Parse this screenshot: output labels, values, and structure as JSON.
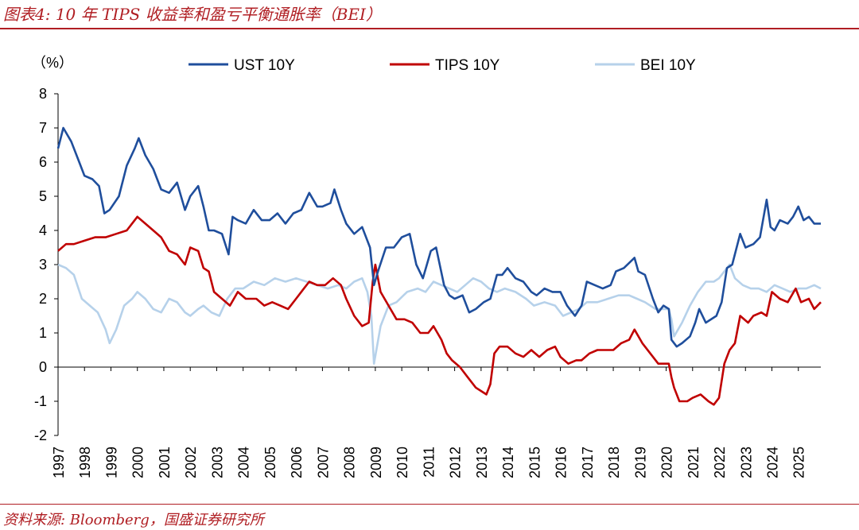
{
  "header": {
    "title": "图表4:  10 年 TIPS 收益率和盈亏平衡通胀率（BEI）"
  },
  "footer": {
    "source": "资料来源:  Bloomberg，国盛证券研究所"
  },
  "chart_data": {
    "type": "line",
    "y_unit_label": "（%）",
    "ylim": [
      -2,
      8
    ],
    "yticks": [
      -2,
      -1,
      0,
      1,
      2,
      3,
      4,
      5,
      6,
      7,
      8
    ],
    "xlim": [
      1997,
      2025.85
    ],
    "xticks": [
      "1997",
      "1998",
      "1999",
      "2000",
      "2001",
      "2002",
      "2003",
      "2004",
      "2005",
      "2006",
      "2007",
      "2008",
      "2009",
      "2010",
      "2011",
      "2012",
      "2013",
      "2014",
      "2015",
      "2016",
      "2017",
      "2018",
      "2019",
      "2020",
      "2021",
      "2022",
      "2023",
      "2024",
      "2025"
    ],
    "legend_position": "top",
    "series": [
      {
        "name": "UST 10Y",
        "color": "#1f4e9c",
        "x": [
          1997,
          1997.2,
          1997.5,
          1997.8,
          1998.0,
          1998.3,
          1998.55,
          1998.75,
          1998.95,
          1999.3,
          1999.6,
          1999.9,
          2000.05,
          2000.3,
          2000.6,
          2000.9,
          2001.2,
          2001.5,
          2001.8,
          2002.0,
          2002.3,
          2002.5,
          2002.7,
          2002.9,
          2003.2,
          2003.45,
          2003.6,
          2003.8,
          2004.1,
          2004.4,
          2004.7,
          2005.0,
          2005.3,
          2005.6,
          2005.9,
          2006.2,
          2006.5,
          2006.8,
          2007.0,
          2007.3,
          2007.45,
          2007.7,
          2007.9,
          2008.2,
          2008.5,
          2008.8,
          2008.95,
          2009.1,
          2009.4,
          2009.7,
          2010.0,
          2010.3,
          2010.55,
          2010.8,
          2011.1,
          2011.3,
          2011.6,
          2011.8,
          2012.0,
          2012.3,
          2012.55,
          2012.8,
          2013.1,
          2013.35,
          2013.6,
          2013.8,
          2014.0,
          2014.3,
          2014.6,
          2014.9,
          2015.1,
          2015.4,
          2015.7,
          2016.0,
          2016.25,
          2016.55,
          2016.8,
          2017.0,
          2017.3,
          2017.6,
          2017.9,
          2018.1,
          2018.4,
          2018.8,
          2018.95,
          2019.2,
          2019.5,
          2019.7,
          2019.9,
          2020.1,
          2020.2,
          2020.4,
          2020.6,
          2020.9,
          2021.1,
          2021.25,
          2021.5,
          2021.9,
          2022.1,
          2022.3,
          2022.5,
          2022.8,
          2023.0,
          2023.3,
          2023.55,
          2023.8,
          2023.95,
          2024.1,
          2024.3,
          2024.6,
          2024.8,
          2025.0,
          2025.2,
          2025.4,
          2025.6,
          2025.85
        ],
        "values": [
          6.4,
          7.0,
          6.6,
          6.0,
          5.6,
          5.5,
          5.3,
          4.5,
          4.6,
          5.0,
          5.9,
          6.4,
          6.7,
          6.2,
          5.8,
          5.2,
          5.1,
          5.4,
          4.6,
          5.0,
          5.3,
          4.7,
          4.0,
          4.0,
          3.9,
          3.3,
          4.4,
          4.3,
          4.2,
          4.6,
          4.3,
          4.3,
          4.5,
          4.2,
          4.5,
          4.6,
          5.1,
          4.7,
          4.7,
          4.8,
          5.2,
          4.6,
          4.2,
          3.9,
          4.1,
          3.5,
          2.4,
          2.8,
          3.5,
          3.5,
          3.8,
          3.9,
          3.0,
          2.6,
          3.4,
          3.5,
          2.4,
          2.1,
          2.0,
          2.1,
          1.6,
          1.7,
          1.9,
          2.0,
          2.7,
          2.7,
          2.9,
          2.6,
          2.5,
          2.2,
          2.1,
          2.3,
          2.2,
          2.2,
          1.8,
          1.5,
          1.8,
          2.5,
          2.4,
          2.3,
          2.4,
          2.8,
          2.9,
          3.2,
          2.8,
          2.7,
          2.0,
          1.6,
          1.8,
          1.7,
          0.8,
          0.6,
          0.7,
          0.9,
          1.3,
          1.7,
          1.3,
          1.5,
          1.9,
          2.9,
          3.0,
          3.9,
          3.5,
          3.6,
          3.8,
          4.9,
          4.1,
          4.0,
          4.3,
          4.2,
          4.4,
          4.7,
          4.3,
          4.4,
          4.2,
          4.2
        ]
      },
      {
        "name": "TIPS 10Y",
        "color": "#c00000",
        "x": [
          1997,
          1997.3,
          1997.6,
          1998.0,
          1998.4,
          1998.8,
          1999.2,
          1999.6,
          1999.9,
          2000.0,
          2000.3,
          2000.6,
          2000.9,
          2001.2,
          2001.5,
          2001.8,
          2002.0,
          2002.3,
          2002.5,
          2002.7,
          2002.9,
          2003.2,
          2003.5,
          2003.8,
          2004.1,
          2004.5,
          2004.8,
          2005.1,
          2005.4,
          2005.7,
          2006.0,
          2006.3,
          2006.5,
          2006.8,
          2007.1,
          2007.4,
          2007.7,
          2007.9,
          2008.2,
          2008.5,
          2008.75,
          2008.9,
          2009.0,
          2009.2,
          2009.5,
          2009.8,
          2010.1,
          2010.4,
          2010.7,
          2011.0,
          2011.2,
          2011.5,
          2011.7,
          2011.9,
          2012.2,
          2012.5,
          2012.8,
          2013.0,
          2013.2,
          2013.35,
          2013.5,
          2013.7,
          2014.0,
          2014.3,
          2014.6,
          2014.9,
          2015.2,
          2015.5,
          2015.8,
          2016.0,
          2016.3,
          2016.6,
          2016.8,
          2017.1,
          2017.4,
          2017.7,
          2018.0,
          2018.3,
          2018.6,
          2018.8,
          2019.1,
          2019.4,
          2019.7,
          2019.9,
          2020.1,
          2020.2,
          2020.3,
          2020.5,
          2020.8,
          2021.0,
          2021.3,
          2021.6,
          2021.8,
          2022.0,
          2022.2,
          2022.4,
          2022.6,
          2022.8,
          2023.1,
          2023.3,
          2023.6,
          2023.8,
          2024.0,
          2024.3,
          2024.6,
          2024.9,
          2025.1,
          2025.4,
          2025.6,
          2025.85
        ],
        "values": [
          3.4,
          3.6,
          3.6,
          3.7,
          3.8,
          3.8,
          3.9,
          4.0,
          4.3,
          4.4,
          4.2,
          4.0,
          3.8,
          3.4,
          3.3,
          3.0,
          3.5,
          3.4,
          2.9,
          2.8,
          2.2,
          2.0,
          1.8,
          2.2,
          2.0,
          2.0,
          1.8,
          1.9,
          1.8,
          1.7,
          2.0,
          2.3,
          2.5,
          2.4,
          2.4,
          2.6,
          2.4,
          2.0,
          1.5,
          1.2,
          1.3,
          2.5,
          3.0,
          2.2,
          1.8,
          1.4,
          1.4,
          1.3,
          1.0,
          1.0,
          1.2,
          0.8,
          0.4,
          0.2,
          0.0,
          -0.3,
          -0.6,
          -0.7,
          -0.8,
          -0.5,
          0.4,
          0.6,
          0.6,
          0.4,
          0.3,
          0.5,
          0.3,
          0.5,
          0.6,
          0.3,
          0.1,
          0.2,
          0.2,
          0.4,
          0.5,
          0.5,
          0.5,
          0.7,
          0.8,
          1.1,
          0.7,
          0.4,
          0.1,
          0.1,
          0.1,
          -0.3,
          -0.6,
          -1.0,
          -1.0,
          -0.9,
          -0.8,
          -1.0,
          -1.1,
          -0.9,
          0.1,
          0.5,
          0.7,
          1.5,
          1.3,
          1.5,
          1.6,
          1.5,
          2.2,
          2.0,
          1.9,
          2.3,
          1.9,
          2.0,
          1.7,
          1.9
        ]
      },
      {
        "name": "BEI 10Y",
        "color": "#b6d1ea",
        "x": [
          1997,
          1997.3,
          1997.6,
          1997.9,
          1998.2,
          1998.5,
          1998.8,
          1998.95,
          1999.2,
          1999.5,
          1999.8,
          2000.0,
          2000.3,
          2000.6,
          2000.9,
          2001.2,
          2001.5,
          2001.8,
          2002.0,
          2002.3,
          2002.5,
          2002.8,
          2003.1,
          2003.4,
          2003.7,
          2004.0,
          2004.4,
          2004.8,
          2005.2,
          2005.6,
          2006.0,
          2006.4,
          2006.8,
          2007.2,
          2007.6,
          2007.9,
          2008.2,
          2008.5,
          2008.7,
          2008.85,
          2008.95,
          2009.2,
          2009.5,
          2009.8,
          2010.2,
          2010.6,
          2010.9,
          2011.2,
          2011.5,
          2011.8,
          2012.1,
          2012.4,
          2012.7,
          2013.0,
          2013.3,
          2013.6,
          2013.9,
          2014.3,
          2014.7,
          2015.0,
          2015.4,
          2015.8,
          2016.1,
          2016.4,
          2016.7,
          2017.0,
          2017.4,
          2017.8,
          2018.2,
          2018.6,
          2018.9,
          2019.2,
          2019.6,
          2019.9,
          2020.1,
          2020.2,
          2020.3,
          2020.6,
          2020.9,
          2021.2,
          2021.5,
          2021.8,
          2022.0,
          2022.2,
          2022.4,
          2022.6,
          2022.9,
          2023.2,
          2023.5,
          2023.8,
          2024.1,
          2024.4,
          2024.7,
          2025.0,
          2025.3,
          2025.6,
          2025.85
        ],
        "values": [
          3.0,
          2.9,
          2.7,
          2.0,
          1.8,
          1.6,
          1.1,
          0.7,
          1.1,
          1.8,
          2.0,
          2.2,
          2.0,
          1.7,
          1.6,
          2.0,
          1.9,
          1.6,
          1.5,
          1.7,
          1.8,
          1.6,
          1.5,
          2.0,
          2.3,
          2.3,
          2.5,
          2.4,
          2.6,
          2.5,
          2.6,
          2.5,
          2.4,
          2.3,
          2.4,
          2.3,
          2.5,
          2.6,
          2.2,
          1.5,
          0.1,
          1.2,
          1.8,
          1.9,
          2.2,
          2.3,
          2.2,
          2.5,
          2.4,
          2.3,
          2.2,
          2.4,
          2.6,
          2.5,
          2.3,
          2.2,
          2.3,
          2.2,
          2.0,
          1.8,
          1.9,
          1.8,
          1.5,
          1.6,
          1.7,
          1.9,
          1.9,
          2.0,
          2.1,
          2.1,
          2.0,
          1.9,
          1.7,
          1.7,
          1.7,
          1.4,
          0.9,
          1.3,
          1.8,
          2.2,
          2.5,
          2.5,
          2.6,
          2.8,
          3.0,
          2.6,
          2.4,
          2.3,
          2.3,
          2.2,
          2.4,
          2.3,
          2.2,
          2.3,
          2.3,
          2.4,
          2.3
        ]
      }
    ]
  }
}
